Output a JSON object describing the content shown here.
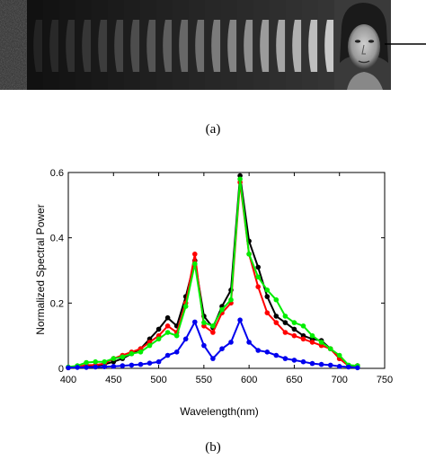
{
  "panel_labels": {
    "a": "(a)",
    "b": "(b)"
  },
  "strip": {
    "frames": 19,
    "background": "#2a2a2a"
  },
  "chart_data": {
    "type": "line",
    "title": "",
    "xlabel": "Wavelength(nm)",
    "ylabel": "Normalized Spectral Power",
    "xlim": [
      400,
      750
    ],
    "ylim": [
      0,
      0.6
    ],
    "xticks": [
      400,
      450,
      500,
      550,
      600,
      650,
      700,
      750
    ],
    "yticks": [
      0,
      0.2,
      0.4,
      0.6
    ],
    "grid": false,
    "legend": "none",
    "x": [
      400,
      410,
      420,
      430,
      440,
      450,
      460,
      470,
      480,
      490,
      500,
      510,
      520,
      530,
      540,
      550,
      560,
      570,
      580,
      590,
      600,
      610,
      620,
      630,
      640,
      650,
      660,
      670,
      680,
      690,
      700,
      710,
      720
    ],
    "series": [
      {
        "color": "#000000",
        "values": [
          0.002,
          0.005,
          0.008,
          0.008,
          0.012,
          0.02,
          0.03,
          0.045,
          0.06,
          0.09,
          0.12,
          0.155,
          0.13,
          0.22,
          0.33,
          0.16,
          0.125,
          0.19,
          0.24,
          0.59,
          0.39,
          0.31,
          0.22,
          0.16,
          0.14,
          0.12,
          0.1,
          0.09,
          0.085,
          0.06,
          0.03,
          0.008,
          0.008
        ]
      },
      {
        "color": "#ff0000",
        "values": [
          0.002,
          0.005,
          0.01,
          0.01,
          0.015,
          0.03,
          0.04,
          0.05,
          0.06,
          0.08,
          0.1,
          0.13,
          0.11,
          0.2,
          0.35,
          0.13,
          0.11,
          0.17,
          0.2,
          0.57,
          0.35,
          0.25,
          0.17,
          0.14,
          0.11,
          0.1,
          0.09,
          0.08,
          0.07,
          0.06,
          0.03,
          0.008,
          0.008
        ]
      },
      {
        "color": "#00ee00",
        "values": [
          0.004,
          0.008,
          0.018,
          0.02,
          0.02,
          0.03,
          0.035,
          0.045,
          0.05,
          0.07,
          0.09,
          0.11,
          0.1,
          0.19,
          0.32,
          0.14,
          0.13,
          0.18,
          0.21,
          0.58,
          0.35,
          0.28,
          0.24,
          0.21,
          0.16,
          0.14,
          0.13,
          0.1,
          0.08,
          0.06,
          0.04,
          0.01,
          0.008
        ]
      },
      {
        "color": "#0000ee",
        "values": [
          0.002,
          0.003,
          0.003,
          0.004,
          0.005,
          0.006,
          0.008,
          0.01,
          0.012,
          0.016,
          0.02,
          0.04,
          0.05,
          0.09,
          0.142,
          0.07,
          0.03,
          0.06,
          0.08,
          0.148,
          0.08,
          0.055,
          0.05,
          0.04,
          0.03,
          0.025,
          0.02,
          0.015,
          0.012,
          0.01,
          0.006,
          0.004,
          0.002
        ]
      }
    ]
  }
}
